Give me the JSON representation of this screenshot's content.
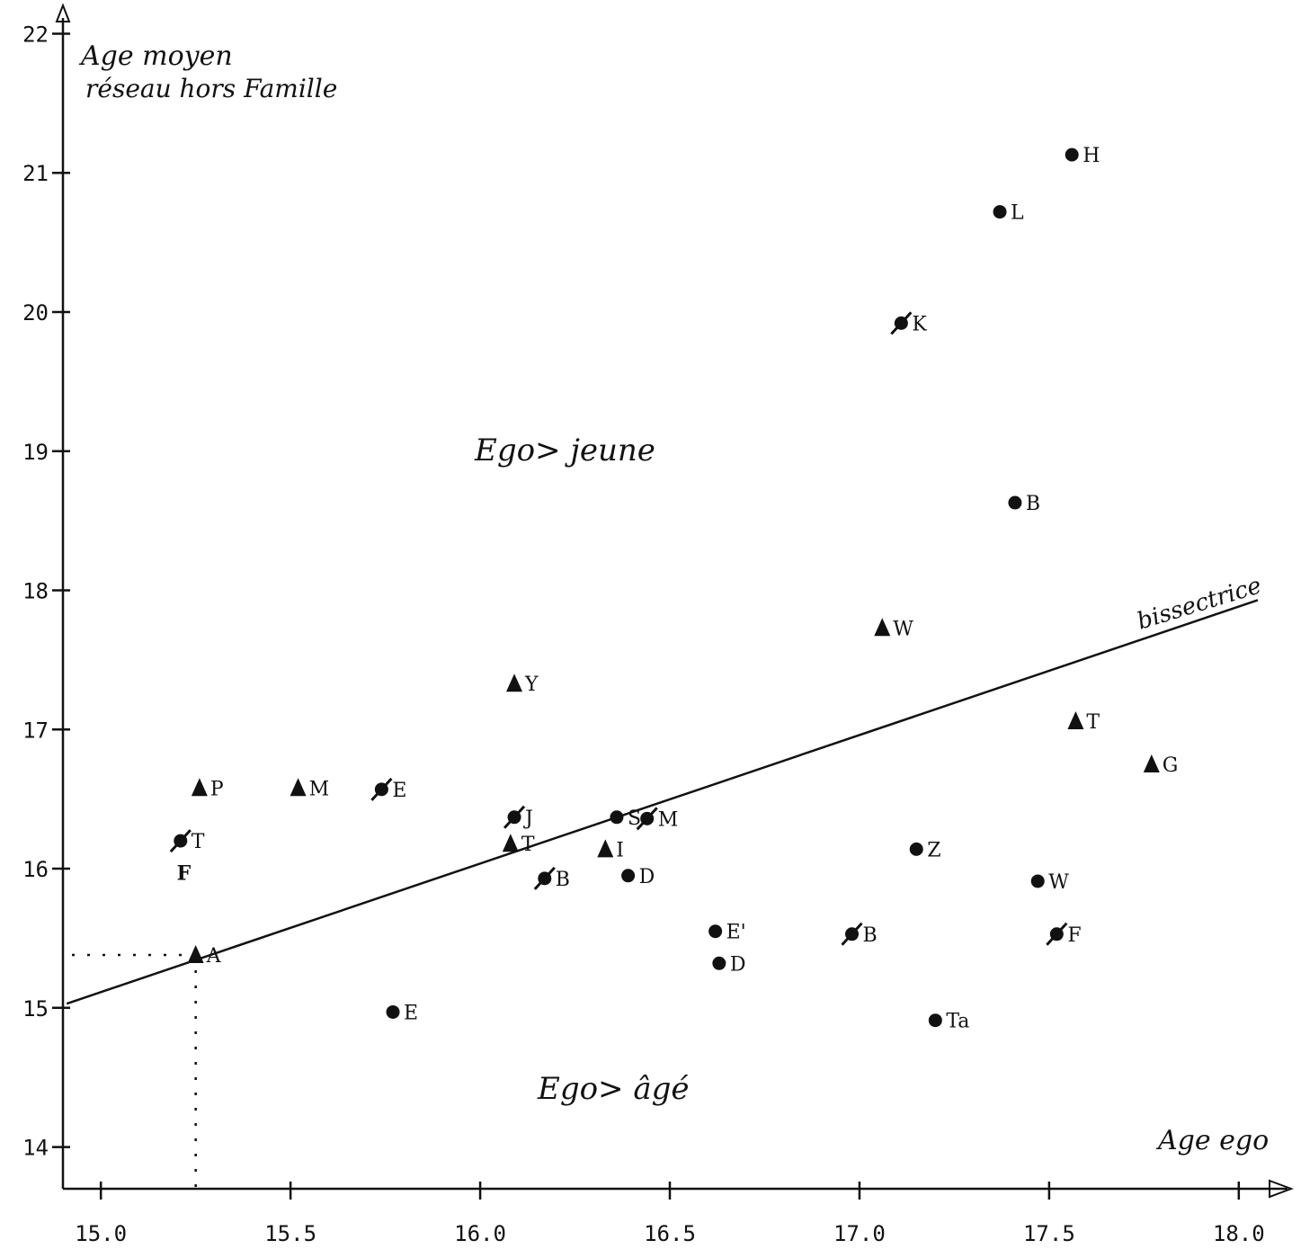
{
  "chart_data": {
    "type": "scatter",
    "title": "",
    "xlabel": "Age ego",
    "ylabel": "Age moyen réseau hors Famille",
    "xlim": [
      14.9,
      18.1
    ],
    "ylim": [
      13.7,
      22.1
    ],
    "x_ticks": [
      "15.0",
      "15.5",
      "16.0",
      "16.5",
      "17.0",
      "17.5",
      "18.0"
    ],
    "y_ticks": [
      "14",
      "15",
      "16",
      "17",
      "18",
      "19",
      "20",
      "21",
      "22"
    ],
    "grid": false,
    "annotations": {
      "upper_region": "Ego> jeune",
      "lower_region": "Ego> âgé",
      "line_label": "bissectrice"
    },
    "bisector_line": [
      [
        14.91,
        15.03
      ],
      [
        18.05,
        17.93
      ]
    ],
    "reference_point": {
      "x": 15.25,
      "y": 15.38
    },
    "series": [
      {
        "marker": "circle",
        "points": [
          {
            "label": "H",
            "x": 17.56,
            "y": 21.13
          },
          {
            "label": "L",
            "x": 17.37,
            "y": 20.72
          },
          {
            "label": "B",
            "x": 17.41,
            "y": 18.63
          },
          {
            "label": "S",
            "x": 16.36,
            "y": 16.37
          },
          {
            "label": "D",
            "x": 16.39,
            "y": 15.95
          },
          {
            "label": "Z",
            "x": 17.15,
            "y": 16.14
          },
          {
            "label": "W",
            "x": 17.47,
            "y": 15.91
          },
          {
            "label": "E'",
            "x": 16.62,
            "y": 15.55
          },
          {
            "label": "D",
            "x": 16.63,
            "y": 15.32
          },
          {
            "label": "E",
            "x": 15.77,
            "y": 14.97
          },
          {
            "label": "Ta",
            "x": 17.2,
            "y": 14.91
          }
        ]
      },
      {
        "marker": "slashed-circle",
        "points": [
          {
            "label": "K",
            "x": 17.11,
            "y": 19.92
          },
          {
            "label": "E",
            "x": 15.74,
            "y": 16.57
          },
          {
            "label": "J",
            "x": 16.09,
            "y": 16.37
          },
          {
            "label": "M",
            "x": 16.44,
            "y": 16.36
          },
          {
            "label": "B",
            "x": 16.17,
            "y": 15.93
          },
          {
            "label": "T",
            "x": 15.21,
            "y": 16.2
          },
          {
            "label": "B",
            "x": 16.98,
            "y": 15.53
          },
          {
            "label": "F",
            "x": 17.52,
            "y": 15.53
          }
        ]
      },
      {
        "marker": "triangle",
        "points": [
          {
            "label": "W",
            "x": 17.06,
            "y": 17.73
          },
          {
            "label": "Y",
            "x": 16.09,
            "y": 17.33
          },
          {
            "label": "T",
            "x": 17.57,
            "y": 17.06
          },
          {
            "label": "G",
            "x": 17.77,
            "y": 16.75
          },
          {
            "label": "P",
            "x": 15.26,
            "y": 16.58
          },
          {
            "label": "M",
            "x": 15.52,
            "y": 16.58
          },
          {
            "label": "T",
            "x": 16.08,
            "y": 16.18
          },
          {
            "label": "I",
            "x": 16.33,
            "y": 16.14
          },
          {
            "label": "A",
            "x": 15.25,
            "y": 15.38
          }
        ]
      }
    ],
    "extra_labels": [
      {
        "text": "F",
        "x": 15.2,
        "y": 15.97
      }
    ]
  }
}
